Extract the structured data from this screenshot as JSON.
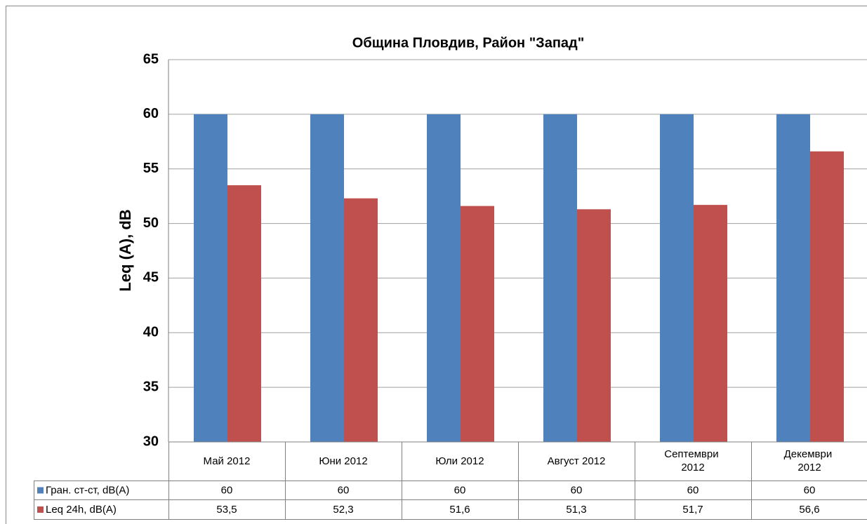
{
  "chart_data": {
    "type": "bar",
    "title": "Община Пловдив, Район \"Запад\"",
    "y_label": "Leq (A), dB",
    "categories": [
      "Май 2012",
      "Юни 2012",
      "Юли 2012",
      "Август 2012",
      "Септември 2012",
      "Декември 2012"
    ],
    "series": [
      {
        "name": "Гран. ст-ст, dB(A)",
        "color": "#4f81bd",
        "values": [
          60,
          60,
          60,
          60,
          60,
          60
        ]
      },
      {
        "name": "Leq 24h, dB(A)",
        "color": "#c0504d",
        "values": [
          53.5,
          52.3,
          51.6,
          51.3,
          51.7,
          56.6
        ],
        "value_labels": [
          "53,5",
          "52,3",
          "51,6",
          "51,3",
          "51,7",
          "56,6"
        ]
      }
    ],
    "ylim": [
      30,
      65
    ],
    "yticks": [
      30,
      35,
      40,
      45,
      50,
      55,
      60,
      65
    ],
    "grid": true,
    "legend": "data-table"
  }
}
